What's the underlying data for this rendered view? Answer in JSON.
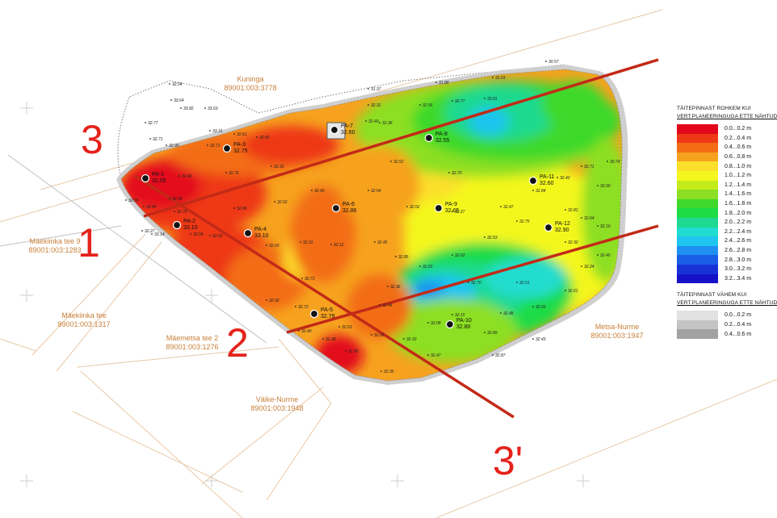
{
  "parcels": [
    {
      "id": "kuninga",
      "name": "Kuninga",
      "code": "89001:003:3778"
    },
    {
      "id": "maekiinka9",
      "name": "Mäekiinka tee 9",
      "code": "89001:003:1283"
    },
    {
      "id": "maekiinka",
      "name": "Mäekiinka tee",
      "code": "89001:003:1317"
    },
    {
      "id": "maemetsa2",
      "name": "Mäemetsa tee 2",
      "code": "89001:003:1276"
    },
    {
      "id": "vaikenurme",
      "name": "Väike-Nurme",
      "code": "89001:003:1948"
    },
    {
      "id": "metsanurme",
      "name": "Metsa-Nurme",
      "code": "89001:003:1947"
    }
  ],
  "section_markers": [
    "1",
    "2",
    "3",
    "3'"
  ],
  "boreholes": [
    {
      "label": "PA-1",
      "value": "32.05"
    },
    {
      "label": "PA-2",
      "value": "33.10"
    },
    {
      "label": "PA-3",
      "value": "32.75"
    },
    {
      "label": "PA-4",
      "value": "33.10"
    },
    {
      "label": "PA-5",
      "value": "32.79"
    },
    {
      "label": "PA-6",
      "value": "32.86"
    },
    {
      "label": "PA-7",
      "value": "32.60"
    },
    {
      "label": "PA-8",
      "value": "32.55"
    },
    {
      "label": "PA-9",
      "value": "32.65"
    },
    {
      "label": "PA-10",
      "value": "32.80"
    },
    {
      "label": "PA-11",
      "value": "32.60"
    },
    {
      "label": "PA-12",
      "value": "32.90"
    }
  ],
  "spot_heights": [
    "32.04",
    "33.64",
    "33.82",
    "33.63",
    "32.77",
    "32.71",
    "32.90",
    "33.31",
    "31.37",
    "31.88",
    "31.03",
    "30.57",
    "30.74",
    "32.61",
    "32.65",
    "32.71",
    "32.49",
    "32.31",
    "32.56",
    "32.77",
    "33.81",
    "33.38",
    "32.52",
    "32.70",
    "32.32",
    "32.76",
    "32.46",
    "32.58",
    "32.86",
    "32.52",
    "32.49",
    "32.54",
    "32.52",
    "32.27",
    "32.47",
    "32.84",
    "32.42",
    "32.71",
    "32.99",
    "32.81",
    "32.75",
    "32.53",
    "32.62",
    "32.65",
    "32.85",
    "32.45",
    "32.12",
    "32.31",
    "32.60",
    "32.52",
    "32.58",
    "32.76",
    "32.84",
    "32.27",
    "32.73",
    "32.72",
    "32.40",
    "32.36",
    "32.44",
    "32.08",
    "32.15",
    "32.89",
    "32.48",
    "32.69",
    "32.61",
    "32.24",
    "32.40",
    "32.30",
    "32.64",
    "32.10",
    "32.70",
    "32.51",
    "32.43",
    "32.87",
    "32.47",
    "32.33",
    "32.66",
    "32.53",
    "32.38",
    "32.92",
    "33.14",
    "32.55",
    "31.89",
    "32.35"
  ],
  "legend": {
    "title_more_1": "TÄITEPINNAST ROHKEM KUI",
    "title_more_2": "VERT.PLANEERINGUGA ETTE NÄHTUD",
    "items_more": [
      {
        "color": "#e3071c",
        "label": "0.0...0.2 m"
      },
      {
        "color": "#ee3917",
        "label": "0.2...0.4 m"
      },
      {
        "color": "#f36d14",
        "label": "0.4...0.6 m"
      },
      {
        "color": "#f6a21f",
        "label": "0.6...0.8 m"
      },
      {
        "color": "#fbdf2a",
        "label": "0.8...1.0 m"
      },
      {
        "color": "#f4f71e",
        "label": "1.0...1.2 m"
      },
      {
        "color": "#c4ec1c",
        "label": "1.2...1.4 m"
      },
      {
        "color": "#8cdf23",
        "label": "1.4...1.6 m"
      },
      {
        "color": "#3ed92c",
        "label": "1.6...1.8 m"
      },
      {
        "color": "#1ddc46",
        "label": "1.8...2.0 m"
      },
      {
        "color": "#1ed98f",
        "label": "2.0...2.2 m"
      },
      {
        "color": "#20dcd0",
        "label": "2.2...2.4 m"
      },
      {
        "color": "#1fc5ef",
        "label": "2.4...2.6 m"
      },
      {
        "color": "#1f8ff1",
        "label": "2.6...2.8 m"
      },
      {
        "color": "#1a5ee6",
        "label": "2.8...3.0 m"
      },
      {
        "color": "#1832d8",
        "label": "3.0...3.2 m"
      },
      {
        "color": "#1612c8",
        "label": "3.2...3.4 m"
      }
    ],
    "title_less_1": "TÄITEPINNAST VÄHEM KUI",
    "title_less_2": "VERT.PLANEERINGUGA ETTE NÄHTUD",
    "items_less": [
      {
        "color": "#e1e1e1",
        "label": "0.0...0.2 m"
      },
      {
        "color": "#c4c4c4",
        "label": "0.2...0.4 m"
      },
      {
        "color": "#a2a2a2",
        "label": "0.4...0.6 m"
      }
    ]
  }
}
